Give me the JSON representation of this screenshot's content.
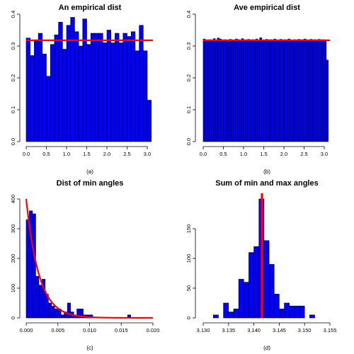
{
  "chart_data": [
    {
      "id": "a",
      "type": "bar",
      "title": "An empirical dist",
      "subcaption": "(a)",
      "xlabel": "",
      "ylabel": "",
      "bin_width": 0.1,
      "xlim": [
        0,
        3.14
      ],
      "ylim": [
        0,
        0.4
      ],
      "x_ticks": [
        0.0,
        0.5,
        1.0,
        1.5,
        2.0,
        2.5,
        3.0
      ],
      "x_tick_labels": [
        "0.0",
        "0.5",
        "1.0",
        "1.5",
        "2.0",
        "2.5",
        "3.0"
      ],
      "y_ticks": [
        0.0,
        0.1,
        0.2,
        0.3,
        0.4
      ],
      "y_tick_labels": [
        "0.0",
        "0.1",
        "0.2",
        "0.3",
        "0.4"
      ],
      "values": [
        0.325,
        0.27,
        0.315,
        0.34,
        0.275,
        0.205,
        0.305,
        0.335,
        0.375,
        0.29,
        0.365,
        0.39,
        0.345,
        0.3,
        0.385,
        0.305,
        0.34,
        0.34,
        0.34,
        0.31,
        0.35,
        0.31,
        0.34,
        0.31,
        0.34,
        0.33,
        0.345,
        0.285,
        0.365,
        0.285,
        0.13
      ],
      "reference_line": {
        "orientation": "horizontal",
        "value": 0.318,
        "color": "#ff0000"
      },
      "grid": false
    },
    {
      "id": "b",
      "type": "bar",
      "title": "Ave empirical dist",
      "subcaption": "(b)",
      "xlabel": "",
      "ylabel": "",
      "bin_width": 0.05,
      "xlim": [
        0,
        3.14
      ],
      "ylim": [
        0,
        0.4
      ],
      "x_ticks": [
        0.0,
        0.5,
        1.0,
        1.5,
        2.0,
        2.5,
        3.0
      ],
      "x_tick_labels": [
        "0.0",
        "0.5",
        "1.0",
        "1.5",
        "2.0",
        "2.5",
        "3.0"
      ],
      "y_ticks": [
        0.0,
        0.1,
        0.2,
        0.3,
        0.4
      ],
      "y_tick_labels": [
        "0.0",
        "0.1",
        "0.2",
        "0.3",
        "0.4"
      ],
      "values": [
        0.322,
        0.315,
        0.318,
        0.32,
        0.319,
        0.323,
        0.317,
        0.325,
        0.322,
        0.316,
        0.32,
        0.318,
        0.314,
        0.321,
        0.319,
        0.317,
        0.322,
        0.32,
        0.318,
        0.323,
        0.316,
        0.319,
        0.321,
        0.318,
        0.32,
        0.317,
        0.322,
        0.315,
        0.326,
        0.318,
        0.319,
        0.321,
        0.316,
        0.32,
        0.318,
        0.322,
        0.317,
        0.319,
        0.321,
        0.318,
        0.32,
        0.316,
        0.322,
        0.318,
        0.319,
        0.32,
        0.317,
        0.321,
        0.318,
        0.32,
        0.322,
        0.319,
        0.318,
        0.321,
        0.317,
        0.32,
        0.319,
        0.321,
        0.318,
        0.32,
        0.318,
        0.256
      ],
      "reference_line": {
        "orientation": "horizontal",
        "value": 0.318,
        "color": "#ff0000"
      },
      "grid": false
    },
    {
      "id": "c",
      "type": "bar",
      "title": "Dist of min angles",
      "subcaption": "(c)",
      "xlabel": "",
      "ylabel": "",
      "bin_width": 0.0005,
      "xlim": [
        0,
        0.02
      ],
      "ylim": [
        0,
        400
      ],
      "x_ticks": [
        0.0,
        0.005,
        0.01,
        0.015,
        0.02
      ],
      "x_tick_labels": [
        "0.000",
        "0.005",
        "0.010",
        "0.015",
        "0.020"
      ],
      "y_ticks": [
        0,
        100,
        200,
        300,
        400
      ],
      "y_tick_labels": [
        "0",
        "100",
        "200",
        "300",
        "400"
      ],
      "values": [
        330,
        360,
        350,
        140,
        110,
        130,
        80,
        50,
        40,
        30,
        30,
        10,
        20,
        50,
        20,
        10,
        30,
        30,
        10,
        10,
        10,
        0,
        0,
        0,
        0,
        0,
        0,
        0,
        0,
        0,
        0,
        0,
        10
      ],
      "reference_curve": {
        "type": "exponential",
        "amplitude": 400,
        "rate": 500,
        "color": "#ff0000"
      },
      "grid": false
    },
    {
      "id": "d",
      "type": "bar",
      "title": "Sum of min and max angles",
      "subcaption": "(d)",
      "xlabel": "",
      "ylabel": "",
      "bin_start": 3.132,
      "bin_width": 0.001,
      "xlim": [
        3.13,
        3.155
      ],
      "ylim": [
        0,
        200
      ],
      "x_ticks": [
        3.13,
        3.135,
        3.14,
        3.145,
        3.15,
        3.155
      ],
      "x_tick_labels": [
        "3.130",
        "3.135",
        "3.140",
        "3.145",
        "3.150",
        "3.155"
      ],
      "y_ticks": [
        0,
        50,
        100,
        150
      ],
      "y_tick_labels": [
        "0",
        "50",
        "100",
        "150"
      ],
      "values": [
        5,
        0,
        25,
        10,
        15,
        65,
        60,
        110,
        120,
        200,
        130,
        90,
        40,
        15,
        25,
        20,
        20,
        20,
        0,
        5
      ],
      "reference_line": {
        "orientation": "vertical",
        "value": 3.1416,
        "color": "#ff0000"
      },
      "grid": false
    }
  ]
}
